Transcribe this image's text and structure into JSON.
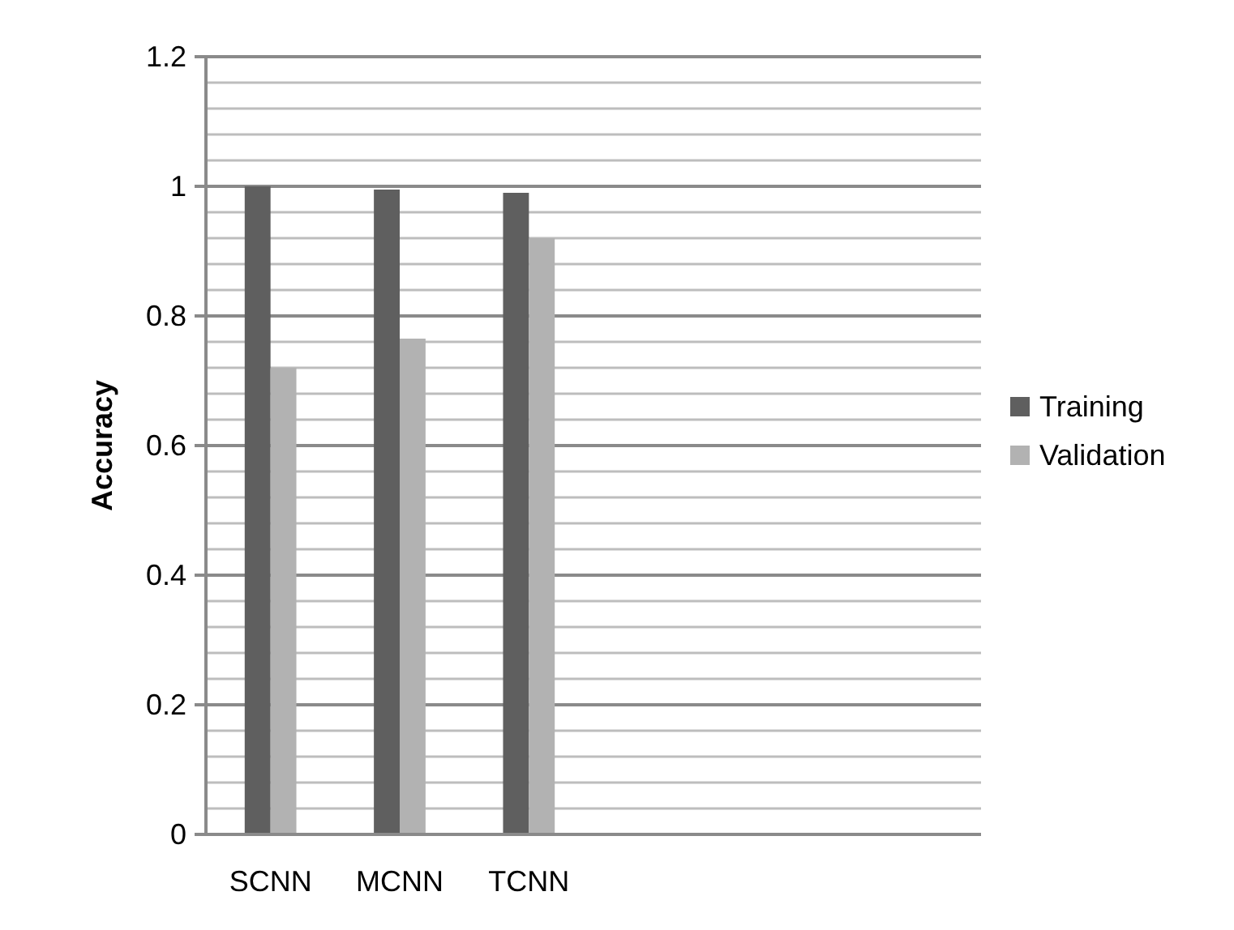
{
  "chart_data": {
    "type": "bar",
    "ylabel": "Accuracy",
    "categories": [
      "SCNN",
      "MCNN",
      "TCNN",
      null,
      null,
      null
    ],
    "series": [
      {
        "name": "Training",
        "color": "#5f5f5f",
        "values": [
          1.0,
          0.995,
          0.99,
          null,
          null,
          null
        ]
      },
      {
        "name": "Validation",
        "color": "#b2b2b2",
        "values": [
          0.72,
          0.765,
          0.92,
          null,
          null,
          null
        ]
      }
    ],
    "ylim": [
      0,
      1.2
    ],
    "yticks": [
      0,
      {
        "value": 0.04,
        "label": null
      },
      {
        "value": 0.08,
        "label": null
      },
      {
        "value": 0.12,
        "label": null
      },
      {
        "value": 0.16,
        "label": null
      },
      0.2,
      {
        "value": 0.24,
        "label": null
      },
      {
        "value": 0.28,
        "label": null
      },
      {
        "value": 0.32,
        "label": null
      },
      {
        "value": 0.36,
        "label": null
      },
      0.4,
      {
        "value": 0.44,
        "label": null
      },
      {
        "value": 0.48,
        "label": null
      },
      {
        "value": 0.52,
        "label": null
      },
      {
        "value": 0.56,
        "label": null
      },
      0.6,
      {
        "value": 0.64,
        "label": null
      },
      {
        "value": 0.68,
        "label": null
      },
      {
        "value": 0.72,
        "label": null
      },
      {
        "value": 0.76,
        "label": null
      },
      0.8,
      {
        "value": 0.84,
        "label": null
      },
      {
        "value": 0.88,
        "label": null
      },
      {
        "value": 0.92,
        "label": null
      },
      {
        "value": 0.96,
        "label": null
      },
      1,
      {
        "value": 1.04,
        "label": null
      },
      {
        "value": 1.08,
        "label": null
      },
      {
        "value": 1.12,
        "label": null
      },
      {
        "value": 1.16,
        "label": null
      },
      1.2
    ],
    "grid": "y",
    "legend": "right"
  }
}
